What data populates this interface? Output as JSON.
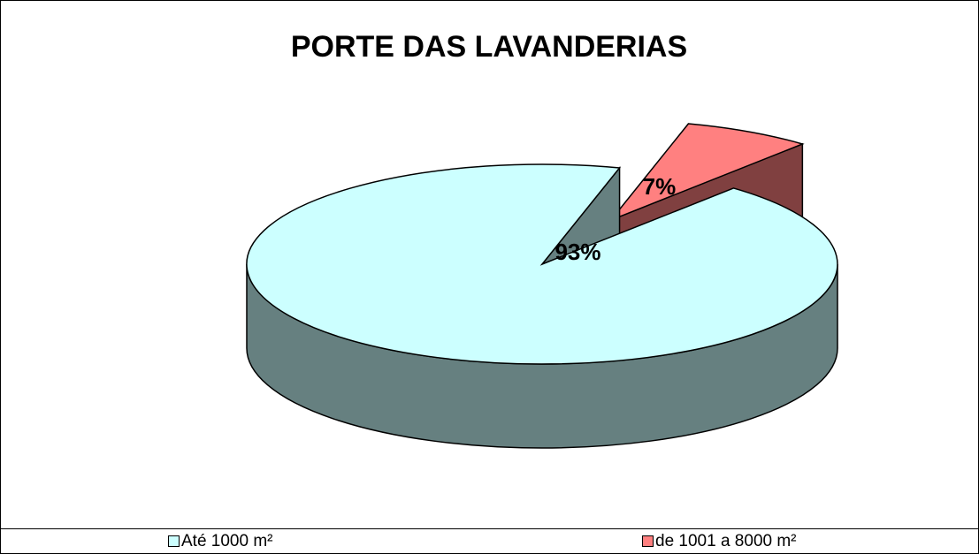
{
  "chart_data": {
    "type": "pie",
    "title": "PORTE DAS LAVANDERIAS",
    "categories": [
      "Até 1000 m²",
      "de 1001 a 8000 m²"
    ],
    "values": [
      93,
      7
    ],
    "value_labels": [
      "93%",
      "7%"
    ],
    "colors": [
      "#ccffff",
      "#ff8080"
    ],
    "side_colors": [
      "#668080",
      "#804040"
    ],
    "three_d": true,
    "legend": "bottom"
  }
}
